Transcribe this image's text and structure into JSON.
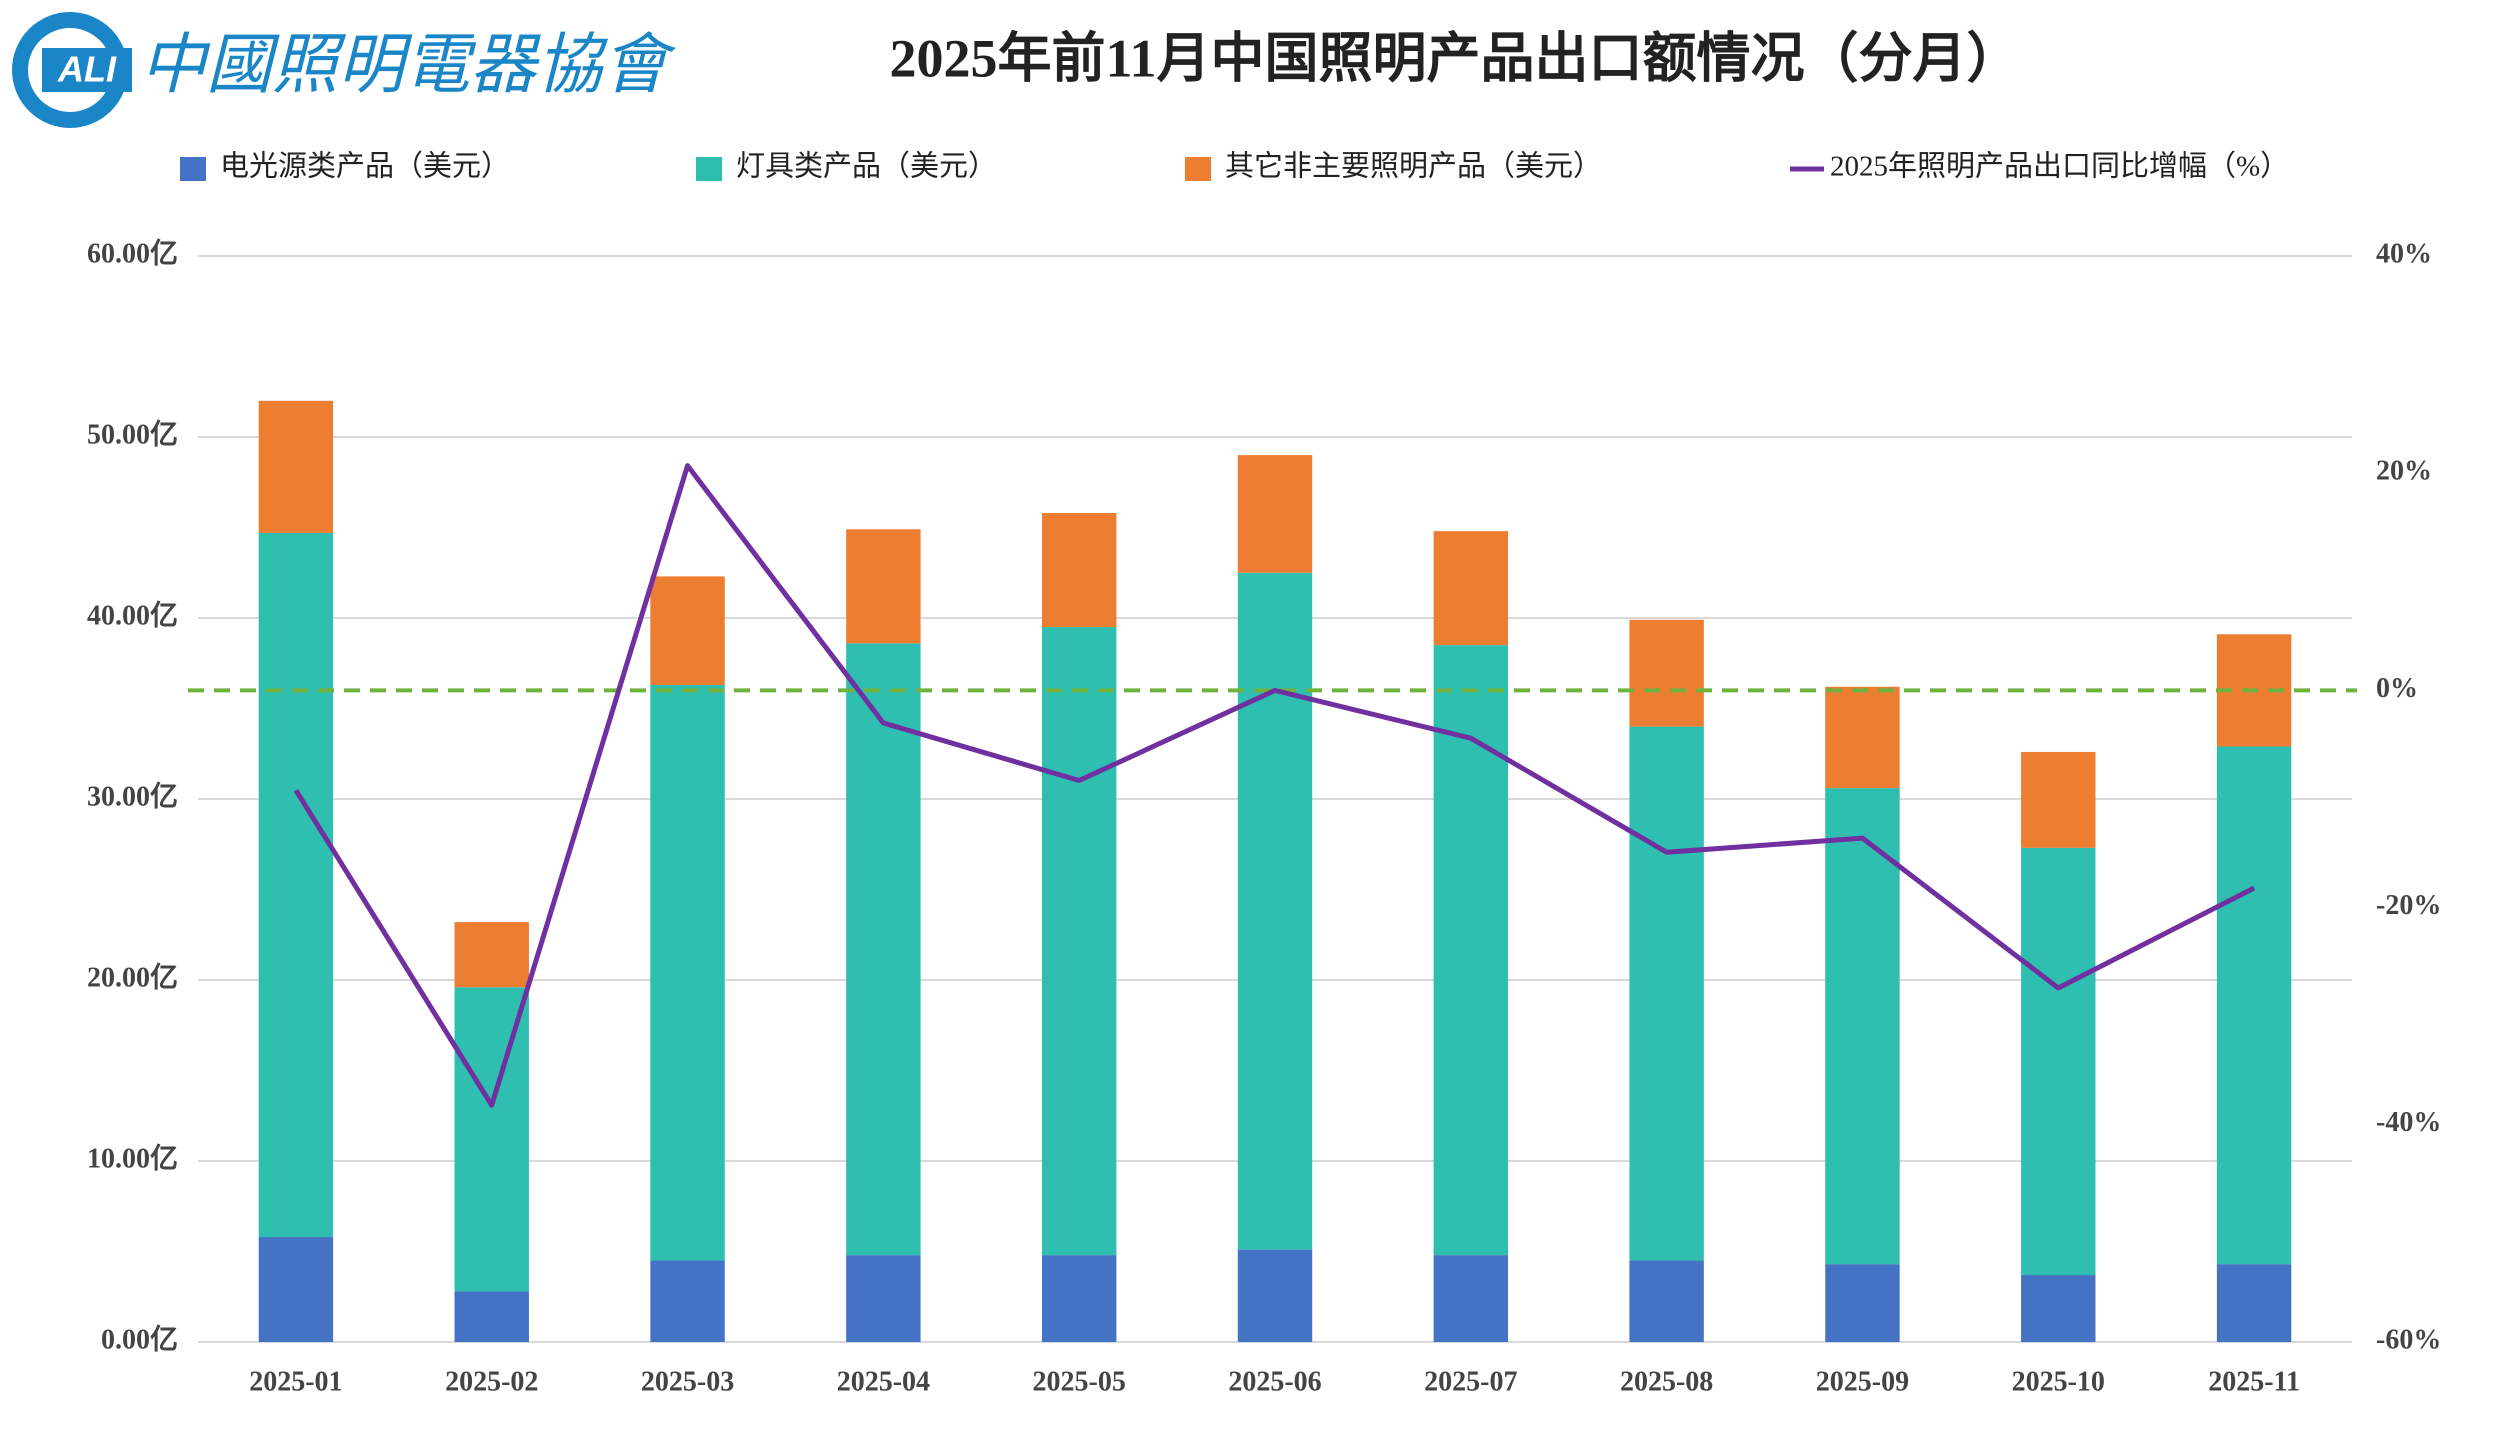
{
  "logo": {
    "abbr": "ALI",
    "name": "中國照明電器協會"
  },
  "chart_data": {
    "type": "bar",
    "stacked": true,
    "title": "2025年前11月中国照明产品出口额情况（分月）",
    "categories": [
      "2025-01",
      "2025-02",
      "2025-03",
      "2025-04",
      "2025-05",
      "2025-06",
      "2025-07",
      "2025-08",
      "2025-09",
      "2025-10",
      "2025-11"
    ],
    "series": [
      {
        "name": "电光源类产品（美元）",
        "color": "#4472c4",
        "values": [
          5.8,
          2.8,
          4.5,
          4.8,
          4.8,
          5.1,
          4.8,
          4.5,
          4.3,
          3.7,
          4.3
        ]
      },
      {
        "name": "灯具类产品（美元）",
        "color": "#2fbfb1",
        "values": [
          38.9,
          16.8,
          31.8,
          33.8,
          34.7,
          37.4,
          33.7,
          29.5,
          26.3,
          23.6,
          28.6
        ]
      },
      {
        "name": "其它非主要照明产品（美元）",
        "color": "#ed7d31",
        "values": [
          7.3,
          3.6,
          6.0,
          6.3,
          6.3,
          6.5,
          6.3,
          5.9,
          5.6,
          5.3,
          6.2
        ]
      },
      {
        "name": "2025年照明产品出口同比增幅（%）",
        "type": "line",
        "axis": "y2",
        "color": "#7030a0",
        "values": [
          -9.2,
          -38.2,
          20.7,
          -3.0,
          -8.3,
          0.0,
          -4.4,
          -14.9,
          -13.6,
          -27.4,
          -18.2
        ]
      }
    ],
    "ylim": [
      0,
      60
    ],
    "yticks": [
      {
        "value": 0,
        "label": "0.00亿"
      },
      {
        "value": 10,
        "label": "10.00亿"
      },
      {
        "value": 20,
        "label": "20.00亿"
      },
      {
        "value": 30,
        "label": "30.00亿"
      },
      {
        "value": 40,
        "label": "40.00亿"
      },
      {
        "value": 50,
        "label": "50.00亿"
      },
      {
        "value": 60,
        "label": "60.00亿"
      }
    ],
    "y2lim": [
      -60,
      40
    ],
    "y2ticks": [
      {
        "value": -60,
        "label": "-60%"
      },
      {
        "value": -40,
        "label": "-40%"
      },
      {
        "value": -20,
        "label": "-20%"
      },
      {
        "value": 0,
        "label": "0%"
      },
      {
        "value": 20,
        "label": "20%"
      },
      {
        "value": 40,
        "label": "40%"
      }
    ],
    "reference_line": {
      "value": 0,
      "axis": "y2",
      "color": "#70b23f"
    },
    "grid": true,
    "legend": "top"
  }
}
